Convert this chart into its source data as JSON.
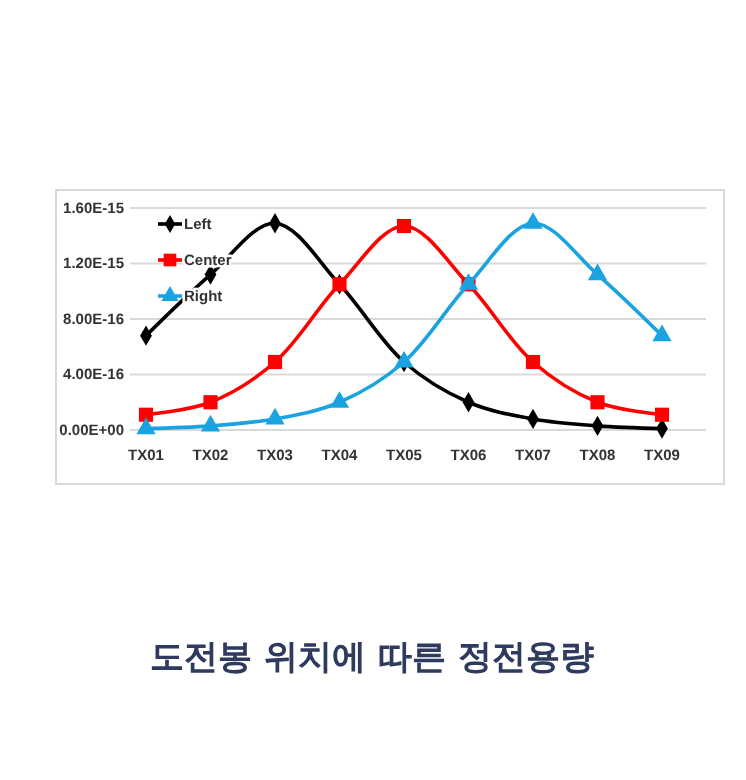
{
  "chart_data": {
    "type": "line",
    "title": "도전봉 위치에 따른 정전용량",
    "categories": [
      "TX01",
      "TX02",
      "TX03",
      "TX04",
      "TX05",
      "TX06",
      "TX07",
      "TX08",
      "TX09"
    ],
    "series": [
      {
        "name": "Left",
        "color": "#000000",
        "marker": "diamond",
        "values": [
          6.8e-16,
          1.12e-15,
          1.49e-15,
          1.05e-15,
          4.9e-16,
          2e-16,
          8e-17,
          3e-17,
          1e-17
        ]
      },
      {
        "name": "Center",
        "color": "#ff0000",
        "marker": "square",
        "values": [
          1.1e-16,
          2e-16,
          4.9e-16,
          1.05e-15,
          1.47e-15,
          1.05e-15,
          4.9e-16,
          2e-16,
          1.1e-16
        ]
      },
      {
        "name": "Right",
        "color": "#1aa3e0",
        "marker": "triangle",
        "values": [
          1e-17,
          3e-17,
          8e-17,
          2e-16,
          4.9e-16,
          1.05e-15,
          1.49e-15,
          1.12e-15,
          6.8e-16
        ]
      }
    ],
    "ylim": [
      0,
      1.6e-15
    ],
    "yticks": [
      {
        "value": 0,
        "label": "0.00E+00"
      },
      {
        "value": 4e-16,
        "label": "4.00E-16"
      },
      {
        "value": 8e-16,
        "label": "8.00E-16"
      },
      {
        "value": 1.2e-15,
        "label": "1.20E-15"
      },
      {
        "value": 1.6e-15,
        "label": "1.60E-15"
      }
    ],
    "grid": "y",
    "legend": "top left"
  }
}
